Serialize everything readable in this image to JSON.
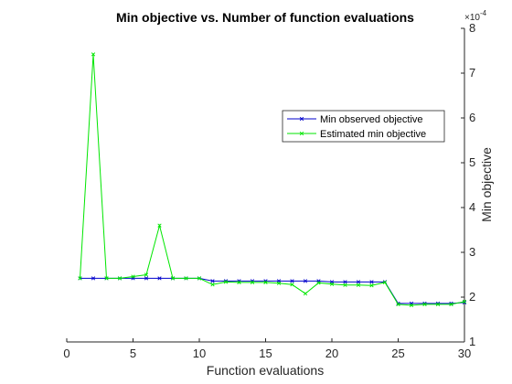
{
  "chart_data": {
    "type": "line",
    "title": "Min objective vs. Number of function evaluations",
    "xlabel": "Function evaluations",
    "ylabel": "Min objective",
    "y_exponent_label": "×10",
    "y_exponent_power": "-4",
    "xlim": [
      0,
      30
    ],
    "ylim": [
      1,
      8
    ],
    "y_axis_location": "right",
    "x_ticks": [
      0,
      5,
      10,
      15,
      20,
      25,
      30
    ],
    "y_ticks": [
      1,
      2,
      3,
      4,
      5,
      6,
      7,
      8
    ],
    "grid": false,
    "legend_position": "right, above middle",
    "x": [
      1,
      2,
      3,
      4,
      5,
      6,
      7,
      8,
      9,
      10,
      11,
      12,
      13,
      14,
      15,
      16,
      17,
      18,
      19,
      20,
      21,
      22,
      23,
      24,
      25,
      26,
      27,
      28,
      29,
      30
    ],
    "series": [
      {
        "name": "Min observed objective",
        "color": "#0000cc",
        "marker": "x",
        "values": [
          2.42,
          2.42,
          2.42,
          2.42,
          2.42,
          2.42,
          2.42,
          2.42,
          2.42,
          2.42,
          2.36,
          2.36,
          2.36,
          2.36,
          2.36,
          2.36,
          2.36,
          2.36,
          2.36,
          2.34,
          2.34,
          2.34,
          2.34,
          2.34,
          1.86,
          1.86,
          1.86,
          1.86,
          1.86,
          1.88
        ]
      },
      {
        "name": "Estimated min objective",
        "color": "#00e600",
        "marker": "x",
        "values": [
          2.42,
          7.42,
          2.42,
          2.42,
          2.46,
          2.5,
          3.6,
          2.42,
          2.42,
          2.42,
          2.28,
          2.34,
          2.33,
          2.33,
          2.33,
          2.31,
          2.28,
          2.08,
          2.32,
          2.29,
          2.27,
          2.27,
          2.26,
          2.33,
          1.84,
          1.82,
          1.84,
          1.84,
          1.84,
          1.9
        ]
      }
    ]
  }
}
